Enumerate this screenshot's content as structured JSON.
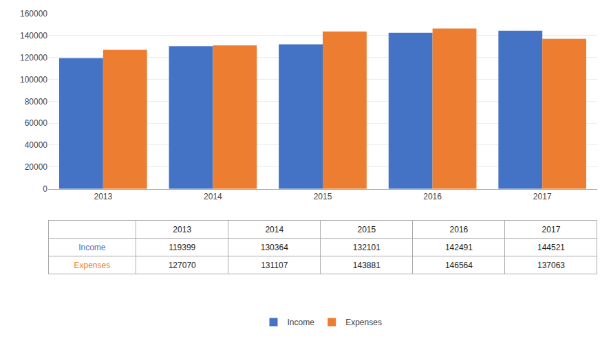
{
  "chart_data": {
    "type": "bar",
    "categories": [
      "2013",
      "2014",
      "2015",
      "2016",
      "2017"
    ],
    "series": [
      {
        "name": "Income",
        "color": "#4472C4",
        "values": [
          119399,
          130364,
          132101,
          142491,
          144521
        ]
      },
      {
        "name": "Expenses",
        "color": "#ED7D31",
        "values": [
          127070,
          131107,
          143881,
          146564,
          137063
        ]
      }
    ],
    "ylim": [
      0,
      160000
    ],
    "yticks": [
      0,
      20000,
      40000,
      60000,
      80000,
      100000,
      120000,
      140000,
      160000
    ],
    "grid": true,
    "legend": "bottom"
  }
}
